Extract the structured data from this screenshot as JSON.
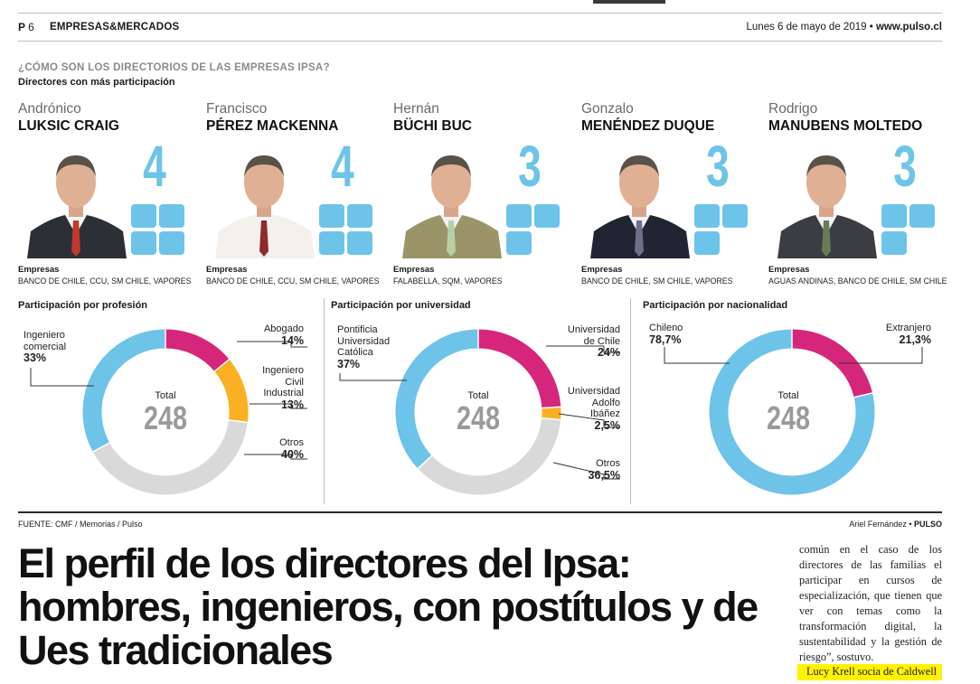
{
  "header": {
    "page_letter": "P",
    "page_number": "6",
    "section": "EMPRESAS&MERCADOS",
    "date": "Lunes 6 de mayo de 2019 •",
    "site": "www.pulso.cl"
  },
  "infographic": {
    "kicker": "¿CÓMO SON LOS DIRECTORIOS DE LAS EMPRESAS IPSA?",
    "subtitle": "Directores con más participación",
    "empresas_label": "Empresas",
    "people": [
      {
        "first": "Andrónico",
        "last": "LUKSIC CRAIG",
        "count": "4",
        "companies": "BANCO DE CHILE, CCU, SM CHILE, VAPORES"
      },
      {
        "first": "Francisco",
        "last": "PÉREZ MACKENNA",
        "count": "4",
        "companies": "BANCO DE CHILE, CCU, SM CHILE, VAPORES"
      },
      {
        "first": "Hernán",
        "last": "BÜCHI BUC",
        "count": "3",
        "companies": "FALABELLA, SQM, VAPORES"
      },
      {
        "first": "Gonzalo",
        "last": "MENÉNDEZ DUQUE",
        "count": "3",
        "companies": "BANCO DE CHILE, SM CHILE, VAPORES"
      },
      {
        "first": "Rodrigo",
        "last": "MANUBENS MOLTEDO",
        "count": "3",
        "companies": "AGUAS ANDINAS, BANCO DE CHILE, SM CHILE"
      }
    ]
  },
  "chart_data": [
    {
      "type": "pie",
      "title": "Participación por profesión",
      "center_label": "Total",
      "total": "248",
      "slices": [
        {
          "label": "Abogado",
          "value": 14,
          "value_label": "14%",
          "color": "#d6267c"
        },
        {
          "label": "Ingeniero Civil Industrial",
          "value": 13,
          "value_label": "13%",
          "color": "#f9b123"
        },
        {
          "label": "Otros",
          "value": 40,
          "value_label": "40%",
          "color": "#d9d9d9"
        },
        {
          "label": "Ingeniero comercial",
          "value": 33,
          "value_label": "33%",
          "color": "#6ec3e8"
        }
      ]
    },
    {
      "type": "pie",
      "title": "Participación por universidad",
      "center_label": "Total",
      "total": "248",
      "slices": [
        {
          "label": "Universidad de Chile",
          "value": 24,
          "value_label": "24%",
          "color": "#d6267c"
        },
        {
          "label": "Universidad Adolfo Ibáñez",
          "value": 2.5,
          "value_label": "2,5%",
          "color": "#f9b123"
        },
        {
          "label": "Otros",
          "value": 36.5,
          "value_label": "36,5%",
          "color": "#d9d9d9"
        },
        {
          "label": "Pontificia Universidad Católica",
          "value": 37,
          "value_label": "37%",
          "color": "#6ec3e8"
        }
      ]
    },
    {
      "type": "pie",
      "title": "Participación por nacionalidad",
      "center_label": "Total",
      "total": "248",
      "slices": [
        {
          "label": "Extranjero",
          "value": 21.3,
          "value_label": "21,3%",
          "color": "#d6267c"
        },
        {
          "label": "Chileno",
          "value": 78.7,
          "value_label": "78,7%",
          "color": "#6ec3e8"
        }
      ]
    }
  ],
  "labels": {
    "c1": {
      "ing_com": [
        "Ingeniero",
        "comercial"
      ],
      "abogado": "Abogado",
      "icind": [
        "Ingeniero",
        "Civil",
        "Industrial"
      ],
      "otros": "Otros"
    },
    "c2": {
      "puc": [
        "Pontificia",
        "Universidad",
        "Católica"
      ],
      "uch": [
        "Universidad",
        "de Chile"
      ],
      "uai": [
        "Universidad",
        "Adolfo",
        "Ibáñez"
      ],
      "otros": "Otros"
    },
    "c3": {
      "chileno": "Chileno",
      "extranjero": "Extranjero"
    }
  },
  "footer": {
    "source": "FUENTE: CMF / Memorias / Pulso",
    "credit_name": "Ariel Fernández •",
    "credit_org": "PULSO"
  },
  "article": {
    "headline": "El perfil de los directores del Ipsa: hombres, ingenieros, con postítulos y de Ues tradicionales",
    "column_text": "común en el caso de los directores de las familias el participar en cursos de especialización, que tienen que ver con temas como la transformación digital, la sustentabilidad y la gestión de riesgo”, sostuvo.",
    "highlight": "Lucy Krell socia de Caldwell"
  },
  "colors": {
    "accent_blue": "#6ec3e8",
    "magenta": "#d6267c",
    "orange": "#f9b123",
    "grey": "#d9d9d9"
  }
}
